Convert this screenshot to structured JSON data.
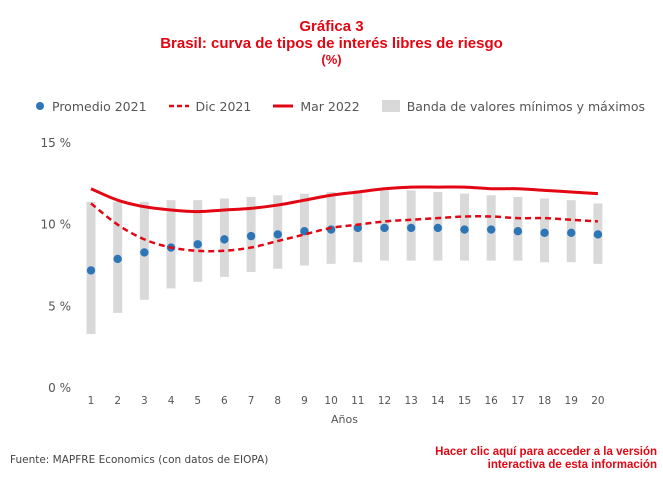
{
  "title": {
    "line1": "Gráfica 3",
    "line2": "Brasil: curva de tipos de interés libres de riesgo",
    "line3": "(%)"
  },
  "legend": {
    "promedio": "Promedio 2021",
    "dic": "Dic 2021",
    "mar": "Mar 2022",
    "banda": "Banda de valores mínimos y máximos"
  },
  "source": "Fuente: MAPFRE Economics (con datos de EIOPA)",
  "link": {
    "line1": "Hacer clic aquí para acceder a la versión",
    "line2": "interactiva de esta información"
  },
  "colors": {
    "red": "#e30613",
    "blue": "#2e75b6",
    "band": "#d9d9d9",
    "text": "#555555"
  },
  "chart_data": {
    "type": "line",
    "x": [
      1,
      2,
      3,
      4,
      5,
      6,
      7,
      8,
      9,
      10,
      11,
      12,
      13,
      14,
      15,
      16,
      17,
      18,
      19,
      20
    ],
    "xlabel": "Años",
    "ylabel": "",
    "ylim": [
      0,
      15
    ],
    "y_ticks": [
      0,
      5,
      10,
      15
    ],
    "y_tick_labels": [
      "0 %",
      "5 %",
      "10 %",
      "15 %"
    ],
    "grid": false,
    "legend_position": "top",
    "band": {
      "name": "Banda de valores mínimos y máximos",
      "min": [
        3.3,
        4.6,
        5.4,
        6.1,
        6.5,
        6.8,
        7.1,
        7.3,
        7.5,
        7.6,
        7.7,
        7.8,
        7.8,
        7.8,
        7.8,
        7.8,
        7.8,
        7.7,
        7.7,
        7.6
      ],
      "max": [
        11.4,
        11.4,
        11.4,
        11.5,
        11.5,
        11.6,
        11.7,
        11.8,
        11.9,
        12.0,
        12.1,
        12.1,
        12.1,
        12.0,
        11.9,
        11.8,
        11.7,
        11.6,
        11.5,
        11.3
      ]
    },
    "series": [
      {
        "name": "Promedio 2021",
        "style": "dots",
        "values": [
          7.2,
          7.9,
          8.3,
          8.6,
          8.8,
          9.1,
          9.3,
          9.4,
          9.6,
          9.7,
          9.8,
          9.8,
          9.8,
          9.8,
          9.7,
          9.7,
          9.6,
          9.5,
          9.5,
          9.4
        ]
      },
      {
        "name": "Dic 2021",
        "style": "dashed",
        "values": [
          11.3,
          10.0,
          9.1,
          8.6,
          8.4,
          8.4,
          8.6,
          9.0,
          9.4,
          9.8,
          10.0,
          10.2,
          10.3,
          10.4,
          10.5,
          10.5,
          10.4,
          10.4,
          10.3,
          10.2
        ]
      },
      {
        "name": "Mar 2022",
        "style": "solid",
        "values": [
          12.2,
          11.5,
          11.1,
          10.9,
          10.8,
          10.9,
          11.0,
          11.2,
          11.5,
          11.8,
          12.0,
          12.2,
          12.3,
          12.3,
          12.3,
          12.2,
          12.2,
          12.1,
          12.0,
          11.9
        ]
      }
    ]
  }
}
